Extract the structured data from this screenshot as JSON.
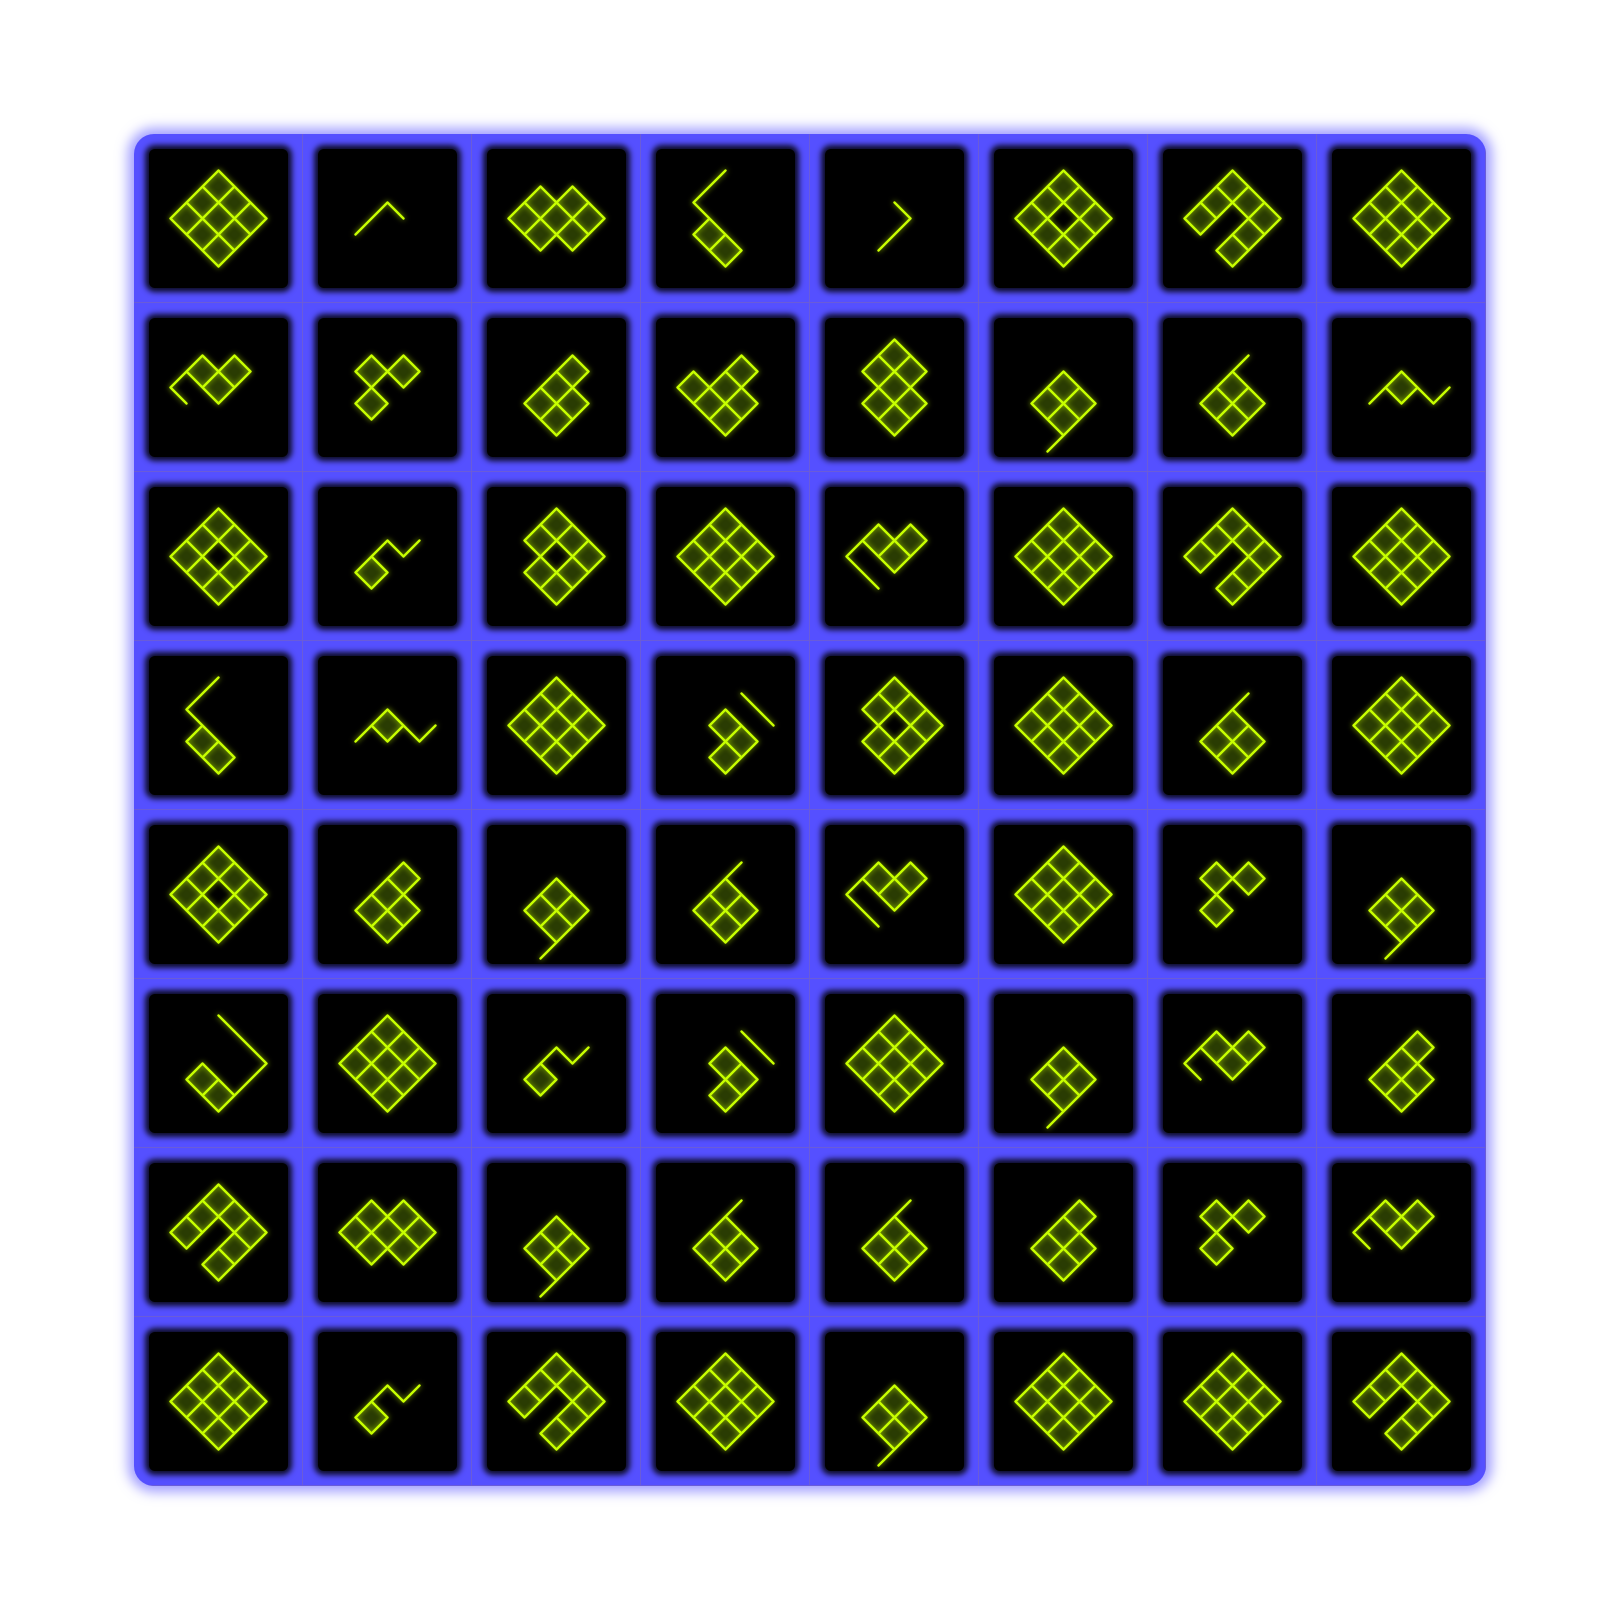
{
  "colors": {
    "page_background": "#ffffff",
    "board": "#5550ff",
    "tile": "#000000",
    "line": "#c8ff00",
    "grid_line": "#6a5cd8"
  },
  "board": {
    "rows": 8,
    "cols": 8,
    "tiles": [
      [
        "full",
        "corner-small",
        "s-blob",
        "z-stair",
        "hook-small",
        "ring-notch",
        "ring-inner",
        "ring-quad"
      ],
      [
        "p-tail",
        "c-open",
        "s-stack",
        "l-blob",
        "box-loop",
        "spiral-tail",
        "hook-box",
        "z-corner"
      ],
      [
        "ring-notch",
        "zigzag",
        "ring-open",
        "full-bars",
        "arrow-left",
        "full",
        "ring-inner",
        "ring-quad"
      ],
      [
        "z-stair",
        "z-corner",
        "ring-quad",
        "arrow-right",
        "ring-open",
        "full-bars",
        "hook-box",
        "full"
      ],
      [
        "ring-notch",
        "s-stack",
        "spiral-tail",
        "hook-box",
        "arrow-left",
        "full-bars",
        "c-open",
        "spiral-tail"
      ],
      [
        "hook-big",
        "full",
        "zigzag",
        "arrow-right",
        "ring-quad",
        "spiral-tail",
        "p-tail",
        "s-stack"
      ],
      [
        "ring-inner",
        "s-blob",
        "spiral-tail",
        "hook-box",
        "hook-box",
        "s-stack",
        "c-open",
        "p-tail"
      ],
      [
        "ring-quad",
        "zigzag",
        "ring-inner",
        "ring-quad",
        "spiral-tail",
        "full",
        "full",
        "ring-inner"
      ]
    ]
  }
}
